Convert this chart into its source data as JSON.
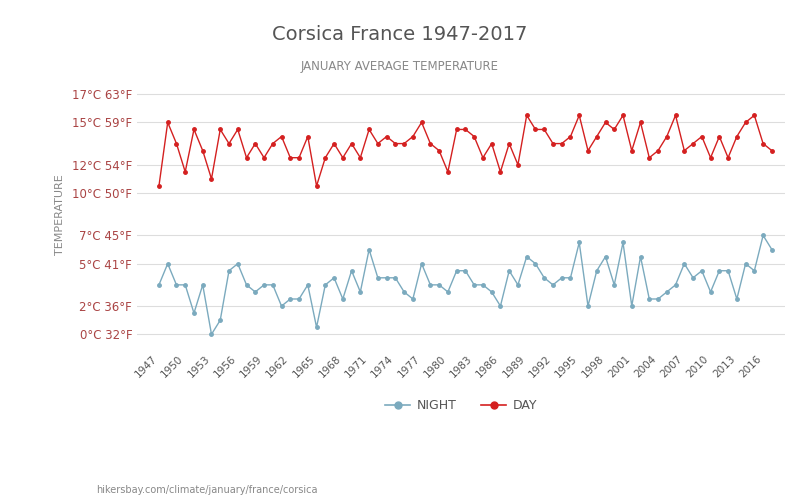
{
  "title": "Corsica France 1947-2017",
  "subtitle": "JANUARY AVERAGE TEMPERATURE",
  "ylabel": "TEMPERATURE",
  "xlabel_url": "hikersbay.com/climate/january/france/corsica",
  "yticks_c": [
    0,
    2,
    5,
    7,
    10,
    12,
    15,
    17
  ],
  "yticks_f": [
    32,
    36,
    41,
    45,
    50,
    54,
    59,
    63
  ],
  "years": [
    1947,
    1948,
    1949,
    1950,
    1951,
    1952,
    1953,
    1954,
    1955,
    1956,
    1957,
    1958,
    1959,
    1960,
    1961,
    1962,
    1963,
    1964,
    1965,
    1966,
    1967,
    1968,
    1969,
    1970,
    1971,
    1972,
    1973,
    1974,
    1975,
    1976,
    1977,
    1978,
    1979,
    1980,
    1981,
    1982,
    1983,
    1984,
    1985,
    1986,
    1987,
    1988,
    1989,
    1990,
    1991,
    1992,
    1993,
    1994,
    1995,
    1996,
    1997,
    1998,
    1999,
    2000,
    2001,
    2002,
    2003,
    2004,
    2005,
    2006,
    2007,
    2008,
    2009,
    2010,
    2011,
    2012,
    2013,
    2014,
    2015,
    2016,
    2017
  ],
  "day_temps": [
    10.5,
    15.0,
    13.5,
    11.5,
    14.5,
    13.0,
    11.0,
    14.5,
    13.5,
    14.5,
    12.5,
    13.5,
    12.5,
    13.5,
    14.0,
    12.5,
    12.5,
    14.0,
    10.5,
    12.5,
    13.5,
    12.5,
    13.5,
    12.5,
    14.5,
    13.5,
    14.0,
    13.5,
    13.5,
    14.0,
    15.0,
    13.5,
    13.0,
    11.5,
    14.5,
    14.5,
    14.0,
    12.5,
    13.5,
    11.5,
    13.5,
    12.0,
    15.5,
    14.5,
    14.5,
    13.5,
    13.5,
    14.0,
    15.5,
    13.0,
    14.0,
    15.0,
    14.5,
    15.5,
    13.0,
    15.0,
    12.5,
    13.0,
    14.0,
    15.5,
    13.0,
    13.5,
    14.0,
    12.5,
    14.0,
    12.5,
    14.0,
    15.0,
    15.5,
    13.5,
    13.0
  ],
  "night_temps": [
    3.5,
    5.0,
    3.5,
    3.5,
    1.5,
    3.5,
    0.0,
    1.0,
    4.5,
    5.0,
    3.5,
    3.0,
    3.5,
    3.5,
    2.0,
    2.5,
    2.5,
    3.5,
    0.5,
    3.5,
    4.0,
    2.5,
    4.5,
    3.0,
    6.0,
    4.0,
    4.0,
    4.0,
    3.0,
    2.5,
    5.0,
    3.5,
    3.5,
    3.0,
    4.5,
    4.5,
    3.5,
    3.5,
    3.0,
    2.0,
    4.5,
    3.5,
    5.5,
    5.0,
    4.0,
    3.5,
    4.0,
    4.0,
    6.5,
    2.0,
    4.5,
    5.5,
    3.5,
    6.5,
    2.0,
    5.5,
    2.5,
    2.5,
    3.0,
    3.5,
    5.0,
    4.0,
    4.5,
    3.0,
    4.5,
    4.5,
    2.5,
    5.0,
    4.5,
    7.0,
    6.0
  ],
  "day_color": "#d42020",
  "night_color": "#7baabe",
  "bg_color": "#ffffff",
  "grid_color": "#dddddd",
  "title_color": "#555555",
  "subtitle_color": "#888888",
  "tick_color": "#aa4444",
  "legend_night": "NIGHT",
  "legend_day": "DAY"
}
